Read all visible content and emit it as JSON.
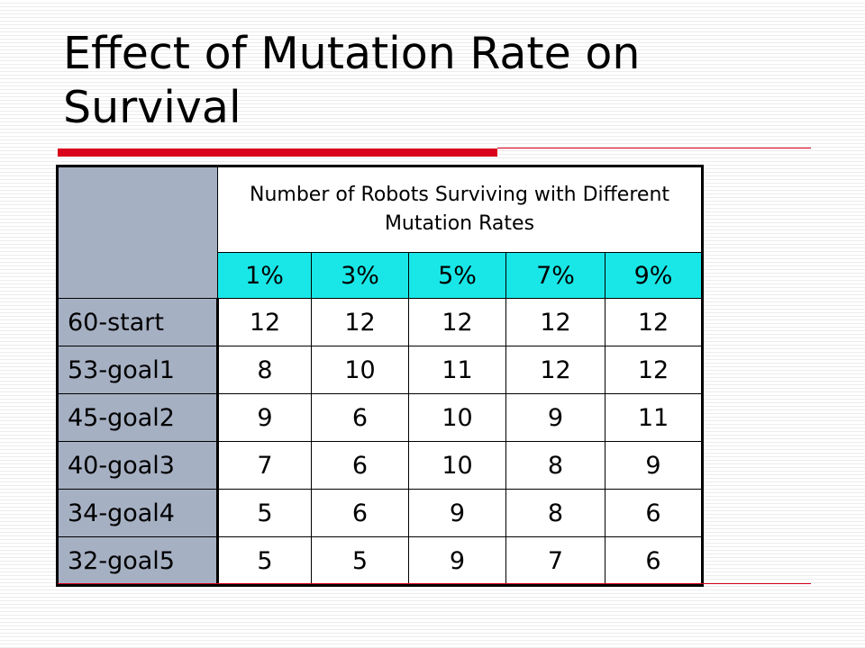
{
  "slide": {
    "title": "Effect of Mutation Rate on Survival"
  },
  "table": {
    "caption": "Number of Robots Surviving with Different Mutation Rates",
    "rates": [
      "1%",
      "3%",
      "5%",
      "7%",
      "9%"
    ],
    "rows": [
      {
        "label": "60-start",
        "values": [
          "12",
          "12",
          "12",
          "12",
          "12"
        ]
      },
      {
        "label": "53-goal1",
        "values": [
          "8",
          "10",
          "11",
          "12",
          "12"
        ]
      },
      {
        "label": "45-goal2",
        "values": [
          "9",
          "6",
          "10",
          "9",
          "11"
        ]
      },
      {
        "label": "40-goal3",
        "values": [
          "7",
          "6",
          "10",
          "8",
          "9"
        ]
      },
      {
        "label": "34-goal4",
        "values": [
          "5",
          "6",
          "9",
          "8",
          "6"
        ]
      },
      {
        "label": "32-goal5",
        "values": [
          "5",
          "5",
          "9",
          "7",
          "6"
        ]
      }
    ]
  },
  "colors": {
    "accent_red": "#d9001b",
    "header_cyan": "#19e7e7",
    "row_header_gray": "#a6b0c3"
  }
}
